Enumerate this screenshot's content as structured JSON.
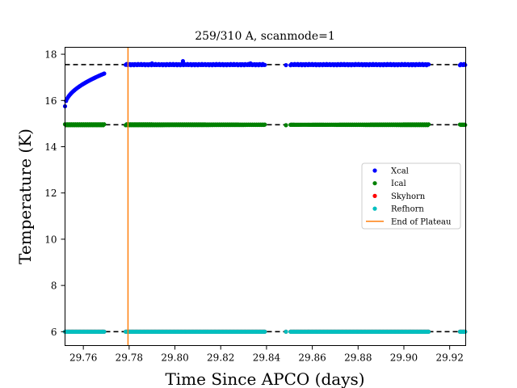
{
  "chart_data": {
    "type": "scatter",
    "title": "259/310 A, scanmode=1",
    "xlabel": "Time Since APCO (days)",
    "ylabel": "Temperature (K)",
    "xlim": [
      29.752,
      29.927
    ],
    "ylim": [
      5.4,
      18.3
    ],
    "xticks": [
      29.76,
      29.78,
      29.8,
      29.82,
      29.84,
      29.86,
      29.88,
      29.9,
      29.92
    ],
    "xtick_labels": [
      "29.76",
      "29.78",
      "29.80",
      "29.82",
      "29.84",
      "29.86",
      "29.88",
      "29.90",
      "29.92"
    ],
    "yticks": [
      6,
      8,
      10,
      12,
      14,
      16,
      18
    ],
    "ytick_labels": [
      "6",
      "8",
      "10",
      "12",
      "14",
      "16",
      "18"
    ],
    "grid": false,
    "legend_position": "center-right",
    "plateau_levels": [
      17.55,
      14.95,
      6.0
    ],
    "end_of_plateau_x": 29.7795,
    "data_segments": [
      [
        29.752,
        29.7695
      ],
      [
        29.7785,
        29.8395
      ],
      [
        29.8505,
        29.911
      ],
      [
        29.9245,
        29.927
      ]
    ],
    "isolated_points_x": [
      29.8485
    ],
    "series": [
      {
        "name": "Xcal",
        "color": "#0000ff",
        "marker": "dot",
        "description_levels": {
          "ramp": {
            "x": [
              29.752,
              29.7695
            ],
            "y_start": 15.75,
            "y_end": 17.18
          },
          "plateau": 17.55,
          "spikes": [
            [
              29.8035,
              17.7
            ],
            [
              29.79,
              17.6
            ],
            [
              29.833,
              17.6
            ]
          ]
        }
      },
      {
        "name": "Ical",
        "color": "#008000",
        "marker": "dot",
        "level": 14.95
      },
      {
        "name": "Skyhorn",
        "color": "#ff0000",
        "marker": "dot",
        "level": 6.0
      },
      {
        "name": "Refhorn",
        "color": "#00bfbf",
        "marker": "dot",
        "level": 6.0
      }
    ],
    "reference_line": {
      "name": "End of Plateau",
      "color": "#ff7f0e"
    }
  }
}
